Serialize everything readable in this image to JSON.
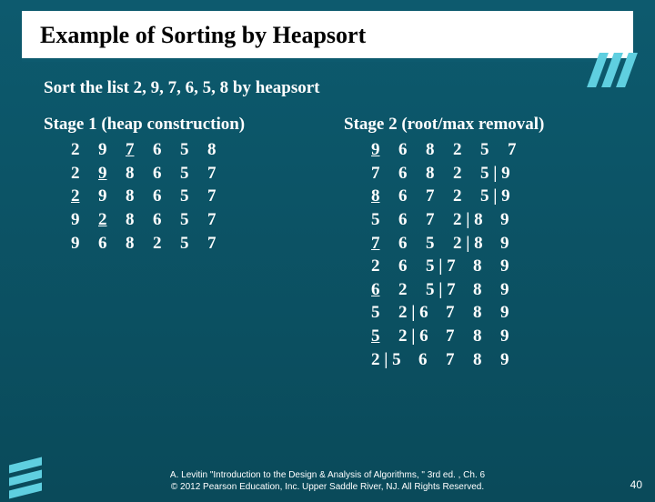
{
  "title": "Example of Sorting by Heapsort",
  "subtitle": "Sort the list  2,  9,  7,  6,  5,  8  by heapsort",
  "stage1": {
    "title": "Stage 1 (heap construction)",
    "rows": [
      [
        {
          "t": "2"
        },
        {
          "t": "9"
        },
        {
          "t": "7",
          "u": true
        },
        {
          "t": "6"
        },
        {
          "t": "5"
        },
        {
          "t": "8"
        }
      ],
      [
        {
          "t": "2"
        },
        {
          "t": "9",
          "u": true
        },
        {
          "t": "8"
        },
        {
          "t": "6"
        },
        {
          "t": "5"
        },
        {
          "t": "7"
        }
      ],
      [
        {
          "t": "2",
          "u": true
        },
        {
          "t": "9"
        },
        {
          "t": "8"
        },
        {
          "t": "6"
        },
        {
          "t": "5"
        },
        {
          "t": "7"
        }
      ],
      [
        {
          "t": "9"
        },
        {
          "t": "2",
          "u": true
        },
        {
          "t": "8"
        },
        {
          "t": "6"
        },
        {
          "t": "5"
        },
        {
          "t": "7"
        }
      ],
      [
        {
          "t": "9"
        },
        {
          "t": "6"
        },
        {
          "t": "8"
        },
        {
          "t": "2"
        },
        {
          "t": "5"
        },
        {
          "t": "7"
        }
      ]
    ]
  },
  "stage2": {
    "title": "Stage 2 (root/max removal)",
    "rows": [
      [
        {
          "t": "9",
          "u": true
        },
        {
          "t": "6"
        },
        {
          "t": "8"
        },
        {
          "t": "2"
        },
        {
          "t": "5"
        },
        {
          "t": "7"
        }
      ],
      [
        {
          "t": "7"
        },
        {
          "t": "6"
        },
        {
          "t": "8"
        },
        {
          "t": "2"
        },
        {
          "t": "5 | 9"
        }
      ],
      [
        {
          "t": "8",
          "u": true
        },
        {
          "t": "6"
        },
        {
          "t": "7"
        },
        {
          "t": "2"
        },
        {
          "t": "5 | 9"
        }
      ],
      [
        {
          "t": "5"
        },
        {
          "t": "6"
        },
        {
          "t": "7"
        },
        {
          "t": "2 | 8"
        },
        {
          "t": "9"
        }
      ],
      [
        {
          "t": "7",
          "u": true
        },
        {
          "t": "6"
        },
        {
          "t": "5"
        },
        {
          "t": "2 | 8"
        },
        {
          "t": "9"
        }
      ],
      [
        {
          "t": "2"
        },
        {
          "t": "6"
        },
        {
          "t": "5 | 7"
        },
        {
          "t": "8"
        },
        {
          "t": "9"
        }
      ],
      [
        {
          "t": "6",
          "u": true
        },
        {
          "t": "2"
        },
        {
          "t": "5 | 7"
        },
        {
          "t": "8"
        },
        {
          "t": "9"
        }
      ],
      [
        {
          "t": "5"
        },
        {
          "t": "2 | 6"
        },
        {
          "t": "7"
        },
        {
          "t": "8"
        },
        {
          "t": "9"
        }
      ],
      [
        {
          "t": "5",
          "u": true
        },
        {
          "t": "2 | 6"
        },
        {
          "t": "7"
        },
        {
          "t": "8"
        },
        {
          "t": "9"
        }
      ],
      [
        {
          "t": "2 | 5"
        },
        {
          "t": "6"
        },
        {
          "t": "7"
        },
        {
          "t": "8"
        },
        {
          "t": "9"
        }
      ]
    ]
  },
  "footer_line1": "A. Levitin \"Introduction to the Design & Analysis of Algorithms, \" 3rd ed. , Ch. 6",
  "footer_line2": "© 2012 Pearson Education, Inc. Upper Saddle River, NJ. All Rights Reserved.",
  "page_number": "40",
  "style": {
    "bg_top": "#0d5a6e",
    "bg_bottom": "#0a4a5a",
    "title_bg": "#ffffff",
    "title_color": "#000000",
    "text_color": "#ffffff",
    "accent": "#5fcfe0",
    "title_fontsize": 26,
    "body_fontsize": 19,
    "footer_fontsize": 10
  }
}
